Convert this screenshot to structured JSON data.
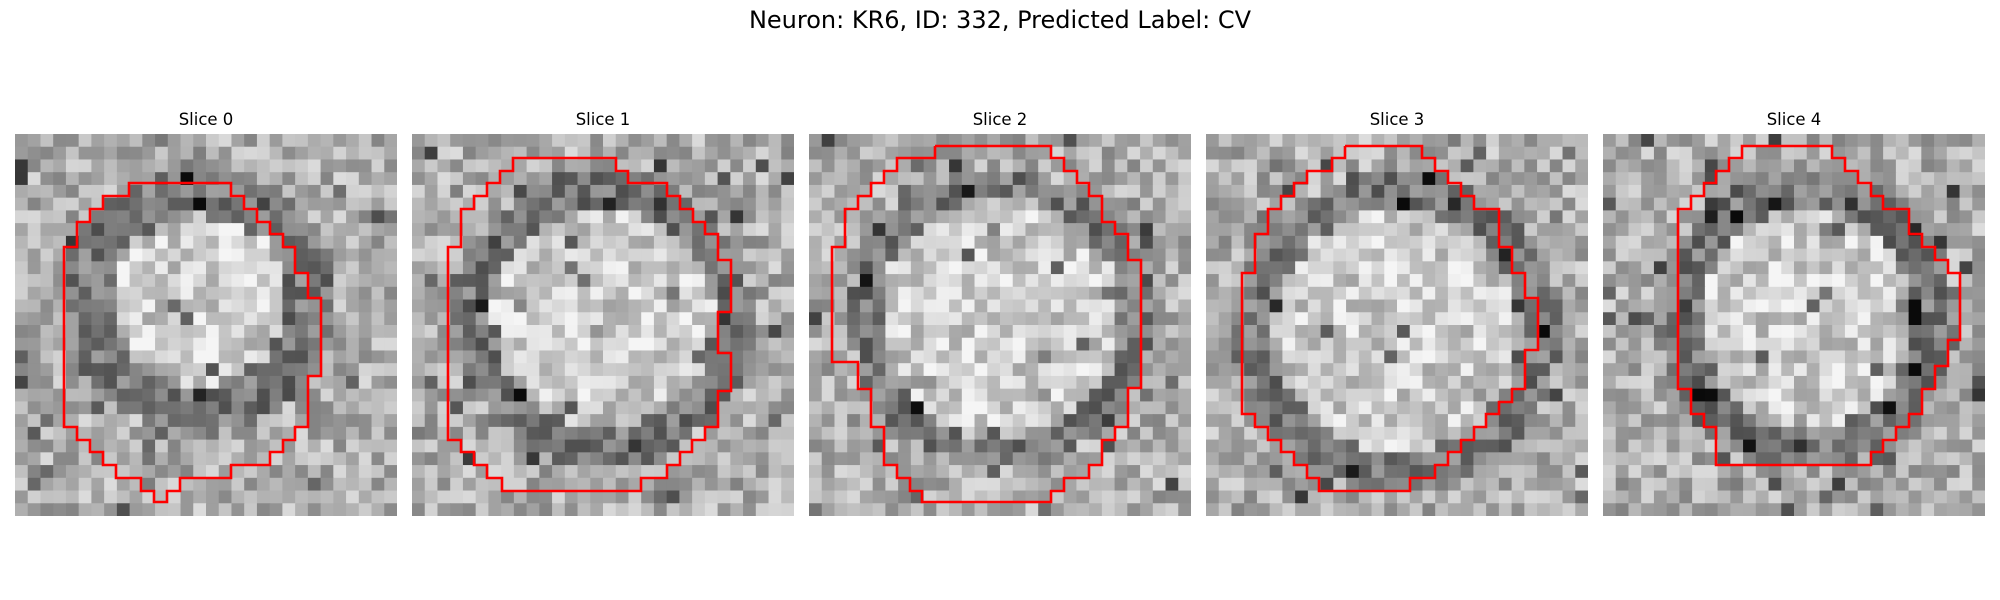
{
  "figure": {
    "title": "Neuron: KR6, ID: 332, Predicted Label: CV"
  },
  "panels": [
    {
      "title": "Slice 0"
    },
    {
      "title": "Slice 1"
    },
    {
      "title": "Slice 2"
    },
    {
      "title": "Slice 3"
    },
    {
      "title": "Slice 4"
    }
  ],
  "colors": {
    "contour": "#ff0000",
    "background": "#ffffff"
  },
  "image": {
    "colormap": "grayscale"
  }
}
